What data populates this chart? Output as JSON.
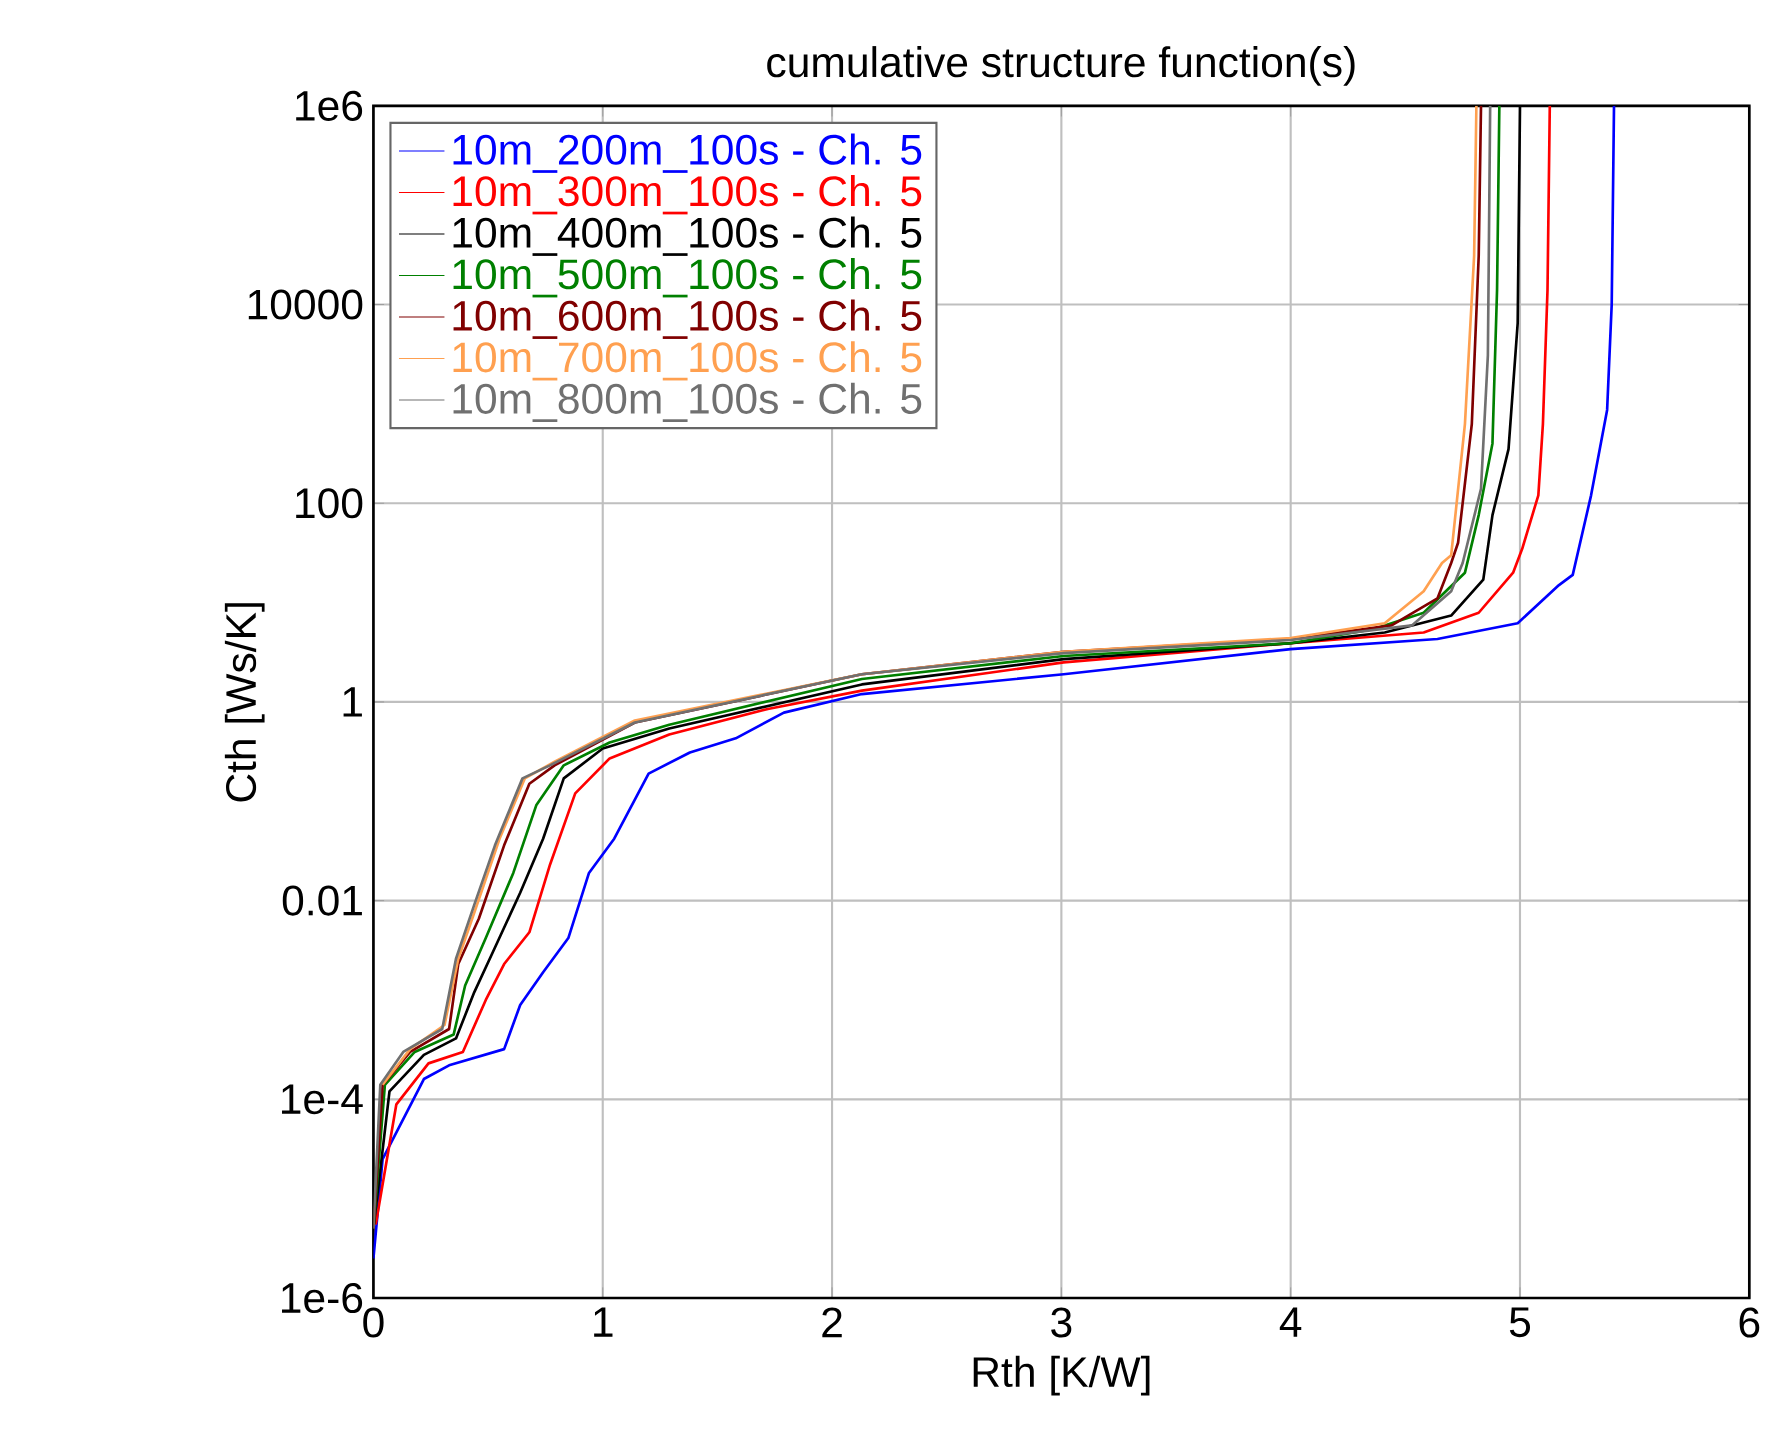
{
  "chart_data": {
    "type": "line",
    "title": "cumulative structure function(s)",
    "xlabel": "Rth  [K/W]",
    "ylabel": "Cth  [Ws/K]",
    "log": "y",
    "grid": true,
    "legend": "top left",
    "line_style": "solid",
    "xlim": [
      0,
      6
    ],
    "xticks": [
      0,
      1,
      2,
      3,
      4,
      5,
      6
    ],
    "ylim": [
      1e-06,
      1000000.0
    ],
    "yticks": [
      {
        "value": 1e-06,
        "label": "1e-6"
      },
      {
        "value": 0.0001,
        "label": "1e-4"
      },
      0.01,
      1,
      100,
      10000,
      {
        "value": 1000000.0,
        "label": "1e6"
      }
    ],
    "series": [
      {
        "name": "10m_200m_100s - Ch. 5",
        "color": "#0000ff",
        "x": [
          0,
          0.04,
          0.22,
          0.33,
          0.57,
          0.64,
          0.74,
          0.85,
          0.94,
          1.05,
          1.2,
          1.38,
          1.58,
          1.79,
          2.13,
          3.01,
          4.0,
          4.64,
          4.99,
          5.17,
          5.23,
          5.31,
          5.38,
          5.4,
          5.41
        ],
        "values": [
          2.5e-06,
          2.5e-05,
          0.00016,
          0.00022,
          0.00032,
          0.00089,
          0.0019,
          0.0042,
          0.019,
          0.042,
          0.19,
          0.31,
          0.43,
          0.78,
          1.2,
          1.9,
          3.4,
          4.3,
          6.2,
          15,
          19,
          120,
          870,
          10000,
          1000000.0
        ]
      },
      {
        "name": "10m_300m_100s - Ch. 5",
        "color": "#ff0000",
        "x": [
          0.01,
          0.1,
          0.24,
          0.39,
          0.49,
          0.57,
          0.68,
          0.77,
          0.88,
          1.03,
          1.29,
          1.72,
          2.13,
          3.01,
          4.0,
          4.58,
          4.82,
          4.97,
          5.01,
          5.08,
          5.1,
          5.12,
          5.13
        ],
        "values": [
          5.5e-06,
          8.9e-05,
          0.00023,
          0.0003,
          0.001,
          0.0023,
          0.0048,
          0.023,
          0.12,
          0.27,
          0.47,
          0.85,
          1.3,
          2.5,
          3.9,
          5,
          7.9,
          20,
          35,
          120,
          630,
          14000,
          1000000.0
        ]
      },
      {
        "name": "10m_400m_100s - Ch. 5",
        "color": "#000000",
        "x": [
          0,
          0.07,
          0.22,
          0.36,
          0.44,
          0.52,
          0.64,
          0.74,
          0.83,
          1.0,
          1.29,
          2.13,
          3.01,
          4.0,
          4.41,
          4.7,
          4.84,
          4.88,
          4.95,
          4.99,
          5.0
        ],
        "values": [
          5e-06,
          0.00012,
          0.00028,
          0.00041,
          0.0012,
          0.003,
          0.012,
          0.042,
          0.17,
          0.34,
          0.54,
          1.5,
          2.7,
          3.9,
          5,
          7.4,
          17,
          76,
          350,
          6500,
          1000000.0
        ]
      },
      {
        "name": "10m_500m_100s - Ch. 5",
        "color": "#008000",
        "x": [
          0,
          0.05,
          0.18,
          0.35,
          0.4,
          0.49,
          0.61,
          0.71,
          0.83,
          1.03,
          1.29,
          2.13,
          3.01,
          4.0,
          4.36,
          4.58,
          4.76,
          4.82,
          4.88,
          4.9,
          4.91
        ],
        "values": [
          5e-06,
          0.00014,
          0.0003,
          0.00045,
          0.0014,
          0.0042,
          0.019,
          0.091,
          0.23,
          0.39,
          0.59,
          1.7,
          2.9,
          3.9,
          5.4,
          7.9,
          20,
          76,
          400,
          14000,
          1000000.0
        ]
      },
      {
        "name": "10m_600m_100s - Ch. 5",
        "color": "#800000",
        "x": [
          0,
          0.04,
          0.16,
          0.33,
          0.37,
          0.46,
          0.57,
          0.68,
          0.79,
          1.14,
          2.13,
          3.01,
          4.0,
          4.44,
          4.64,
          4.7,
          4.73,
          4.79,
          4.82,
          4.83
        ],
        "values": [
          5e-06,
          0.00014,
          0.0003,
          0.00051,
          0.0023,
          0.0066,
          0.036,
          0.15,
          0.23,
          0.62,
          1.9,
          3.2,
          4.3,
          5.9,
          11,
          25,
          40,
          630,
          31000,
          1000000.0
        ]
      },
      {
        "name": "10m_700m_100s - Ch. 5",
        "color": "#ffa050",
        "x": [
          0.04,
          0.16,
          0.31,
          0.37,
          0.44,
          0.55,
          0.66,
          0.79,
          1.14,
          2.13,
          3.01,
          4.0,
          4.41,
          4.58,
          4.66,
          4.7,
          4.76,
          4.8,
          4.81
        ],
        "values": [
          0.00014,
          0.00032,
          0.00056,
          0.0026,
          0.0076,
          0.042,
          0.17,
          0.25,
          0.65,
          1.9,
          3.2,
          4.4,
          6.2,
          13,
          25,
          30,
          630,
          31000,
          1000000.0
        ]
      },
      {
        "name": "10m_800m_100s - Ch. 5",
        "color": "#707070",
        "x": [
          0,
          0.03,
          0.13,
          0.3,
          0.36,
          0.44,
          0.53,
          0.65,
          0.77,
          1.14,
          2.13,
          3.01,
          4.0,
          4.53,
          4.7,
          4.75,
          4.83,
          4.86,
          4.87
        ],
        "values": [
          5e-06,
          0.00014,
          0.0003,
          0.00051,
          0.0026,
          0.0091,
          0.036,
          0.17,
          0.23,
          0.62,
          1.9,
          3.1,
          4.2,
          5.9,
          13,
          25,
          140,
          3100,
          1000000.0
        ]
      }
    ]
  }
}
